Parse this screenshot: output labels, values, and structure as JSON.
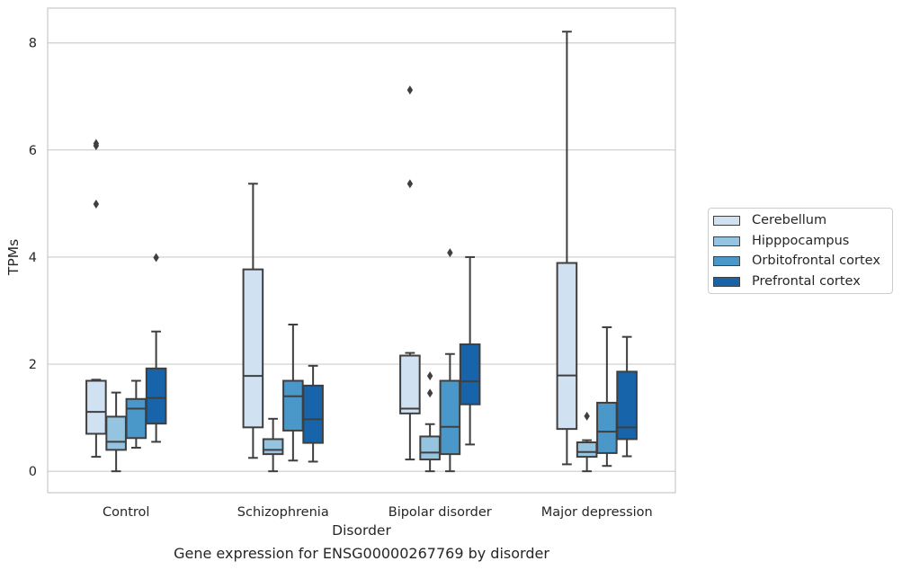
{
  "chart_data": {
    "type": "box",
    "title": "Gene expression for ENSG00000267769 by disorder",
    "xlabel": "Disorder",
    "ylabel": "TPMs",
    "ylim": [
      -0.4,
      8.65
    ],
    "yticks": [
      0,
      2,
      4,
      6,
      8
    ],
    "categories": [
      "Control",
      "Schizophrenia",
      "Bipolar disorder",
      "Major depression"
    ],
    "grid": "horizontal",
    "legend_position": "center-right",
    "series": [
      {
        "name": "Cerebellum",
        "color": "#d0e1f2",
        "boxes": [
          {
            "whisker_low": 0.27,
            "q1": 0.7,
            "median": 1.11,
            "q3": 1.69,
            "whisker_high": 1.71,
            "outliers": [
              4.99,
              6.08,
              6.12
            ]
          },
          {
            "whisker_low": 0.25,
            "q1": 0.82,
            "median": 1.78,
            "q3": 3.77,
            "whisker_high": 5.37,
            "outliers": []
          },
          {
            "whisker_low": 0.22,
            "q1": 1.08,
            "median": 1.17,
            "q3": 2.16,
            "whisker_high": 2.21,
            "outliers": [
              5.37,
              7.12
            ]
          },
          {
            "whisker_low": 0.13,
            "q1": 0.79,
            "median": 1.79,
            "q3": 3.89,
            "whisker_high": 8.21,
            "outliers": []
          }
        ]
      },
      {
        "name": "Hipppocampus",
        "color": "#94c4df",
        "boxes": [
          {
            "whisker_low": 0.0,
            "q1": 0.4,
            "median": 0.55,
            "q3": 1.02,
            "whisker_high": 1.47,
            "outliers": []
          },
          {
            "whisker_low": 0.0,
            "q1": 0.32,
            "median": 0.4,
            "q3": 0.6,
            "whisker_high": 0.98,
            "outliers": []
          },
          {
            "whisker_low": 0.0,
            "q1": 0.22,
            "median": 0.35,
            "q3": 0.65,
            "whisker_high": 0.88,
            "outliers": [
              1.46,
              1.78
            ]
          },
          {
            "whisker_low": 0.0,
            "q1": 0.27,
            "median": 0.36,
            "q3": 0.54,
            "whisker_high": 0.58,
            "outliers": [
              1.03
            ]
          }
        ]
      },
      {
        "name": "Orbitofrontal cortex",
        "color": "#4a98c9",
        "boxes": [
          {
            "whisker_low": 0.44,
            "q1": 0.62,
            "median": 1.17,
            "q3": 1.35,
            "whisker_high": 1.69,
            "outliers": []
          },
          {
            "whisker_low": 0.2,
            "q1": 0.76,
            "median": 1.4,
            "q3": 1.69,
            "whisker_high": 2.74,
            "outliers": []
          },
          {
            "whisker_low": 0.0,
            "q1": 0.32,
            "median": 0.83,
            "q3": 1.69,
            "whisker_high": 2.19,
            "outliers": [
              4.08
            ]
          },
          {
            "whisker_low": 0.1,
            "q1": 0.34,
            "median": 0.74,
            "q3": 1.28,
            "whisker_high": 2.69,
            "outliers": []
          }
        ]
      },
      {
        "name": "Prefrontal cortex",
        "color": "#1764ab",
        "boxes": [
          {
            "whisker_low": 0.55,
            "q1": 0.89,
            "median": 1.37,
            "q3": 1.92,
            "whisker_high": 2.61,
            "outliers": [
              3.99
            ]
          },
          {
            "whisker_low": 0.18,
            "q1": 0.53,
            "median": 0.97,
            "q3": 1.6,
            "whisker_high": 1.97,
            "outliers": []
          },
          {
            "whisker_low": 0.5,
            "q1": 1.25,
            "median": 1.68,
            "q3": 2.37,
            "whisker_high": 4.0,
            "outliers": []
          },
          {
            "whisker_low": 0.28,
            "q1": 0.6,
            "median": 0.82,
            "q3": 1.86,
            "whisker_high": 2.51,
            "outliers": []
          }
        ]
      }
    ]
  }
}
